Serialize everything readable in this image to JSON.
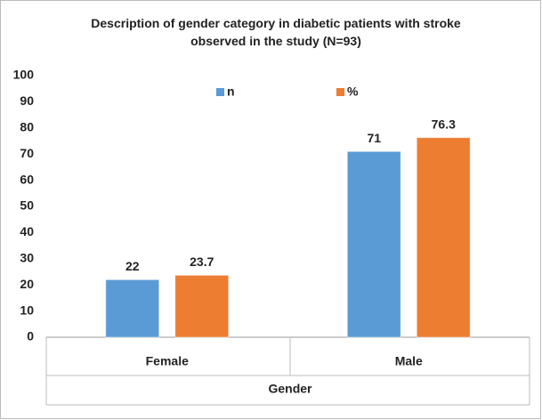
{
  "chart_data": {
    "type": "bar",
    "title": "Description of gender category in diabetic patients with stroke observed in the study (N=93)",
    "x_label": "Gender",
    "categories": [
      "Female",
      "Male"
    ],
    "series": [
      {
        "name": "n",
        "color": "#5b9bd5",
        "values": [
          22,
          71
        ]
      },
      {
        "name": "%",
        "color": "#ed7d31",
        "values": [
          23.7,
          76.3
        ]
      }
    ],
    "ylim": [
      0,
      100
    ],
    "yticks": [
      0,
      10,
      20,
      30,
      40,
      50,
      60,
      70,
      80,
      90,
      100
    ],
    "grid": false,
    "legend": "top"
  }
}
